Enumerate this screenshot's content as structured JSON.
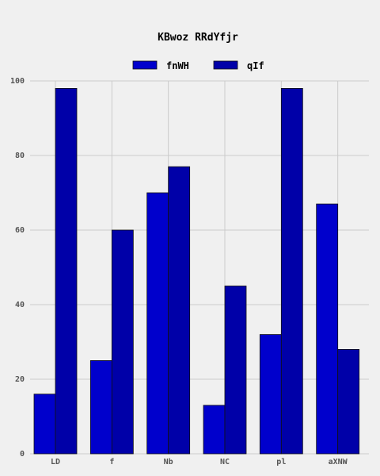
{
  "chart_data": {
    "type": "bar",
    "title": "KBwoz  RRdYfjr",
    "xlabel": "",
    "ylabel": "",
    "categories": [
      "LD",
      "f",
      "Nb",
      "NC",
      "pl",
      "aXNW"
    ],
    "series": [
      {
        "name": "fnWH",
        "values": [
          16,
          25,
          70,
          13,
          32,
          67
        ],
        "color": "#0000cc"
      },
      {
        "name": "qIf",
        "values": [
          98,
          60,
          77,
          45,
          98,
          28
        ],
        "color": "#0000a8"
      }
    ],
    "ylim": [
      0,
      100
    ],
    "yticks": [
      0,
      20,
      40,
      60,
      80,
      100
    ],
    "grid": true,
    "legend_position": "top-center"
  }
}
